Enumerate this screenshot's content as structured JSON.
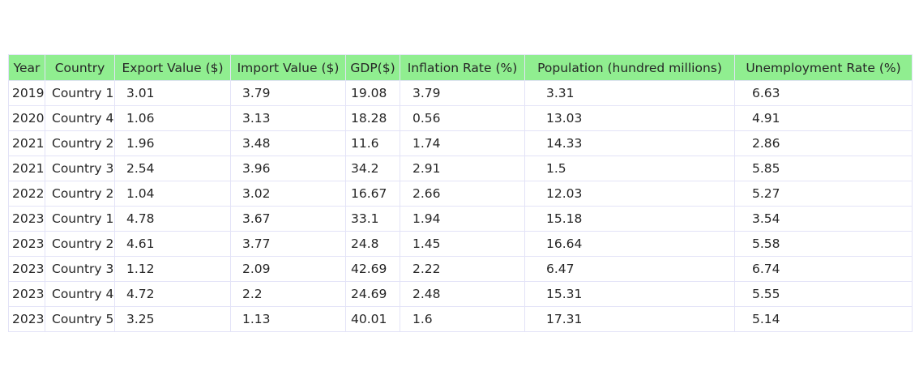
{
  "chart_data": {
    "type": "table",
    "columns": [
      "Year",
      "Country",
      "Export Value ($)",
      "Import Value ($)",
      "GDP($)",
      "Inflation Rate (%)",
      "Population (hundred millions)",
      "Unemployment Rate (%)"
    ],
    "rows": [
      [
        "2019",
        "Country 1",
        "3.01",
        "3.79",
        "19.08",
        "3.79",
        "3.31",
        "6.63"
      ],
      [
        "2020",
        "Country 4",
        "1.06",
        "3.13",
        "18.28",
        "0.56",
        "13.03",
        "4.91"
      ],
      [
        "2021",
        "Country 2",
        "1.96",
        "3.48",
        "11.6",
        "1.74",
        "14.33",
        "2.86"
      ],
      [
        "2021",
        "Country 3",
        "2.54",
        "3.96",
        "34.2",
        "2.91",
        "1.5",
        "5.85"
      ],
      [
        "2022",
        "Country 2",
        "1.04",
        "3.02",
        "16.67",
        "2.66",
        "12.03",
        "5.27"
      ],
      [
        "2023",
        "Country 1",
        "4.78",
        "3.67",
        "33.1",
        "1.94",
        "15.18",
        "3.54"
      ],
      [
        "2023",
        "Country 2",
        "4.61",
        "3.77",
        "24.8",
        "1.45",
        "16.64",
        "5.58"
      ],
      [
        "2023",
        "Country 3",
        "1.12",
        "2.09",
        "42.69",
        "2.22",
        "6.47",
        "6.74"
      ],
      [
        "2023",
        "Country 4",
        "4.72",
        "2.2",
        "24.69",
        "2.48",
        "15.31",
        "5.55"
      ],
      [
        "2023",
        "Country 5",
        "3.25",
        "1.13",
        "40.01",
        "1.6",
        "17.31",
        "5.14"
      ]
    ],
    "header_color": "#90ee90",
    "border_color": "#e3e3f7",
    "cell_color": "#ffffff"
  }
}
